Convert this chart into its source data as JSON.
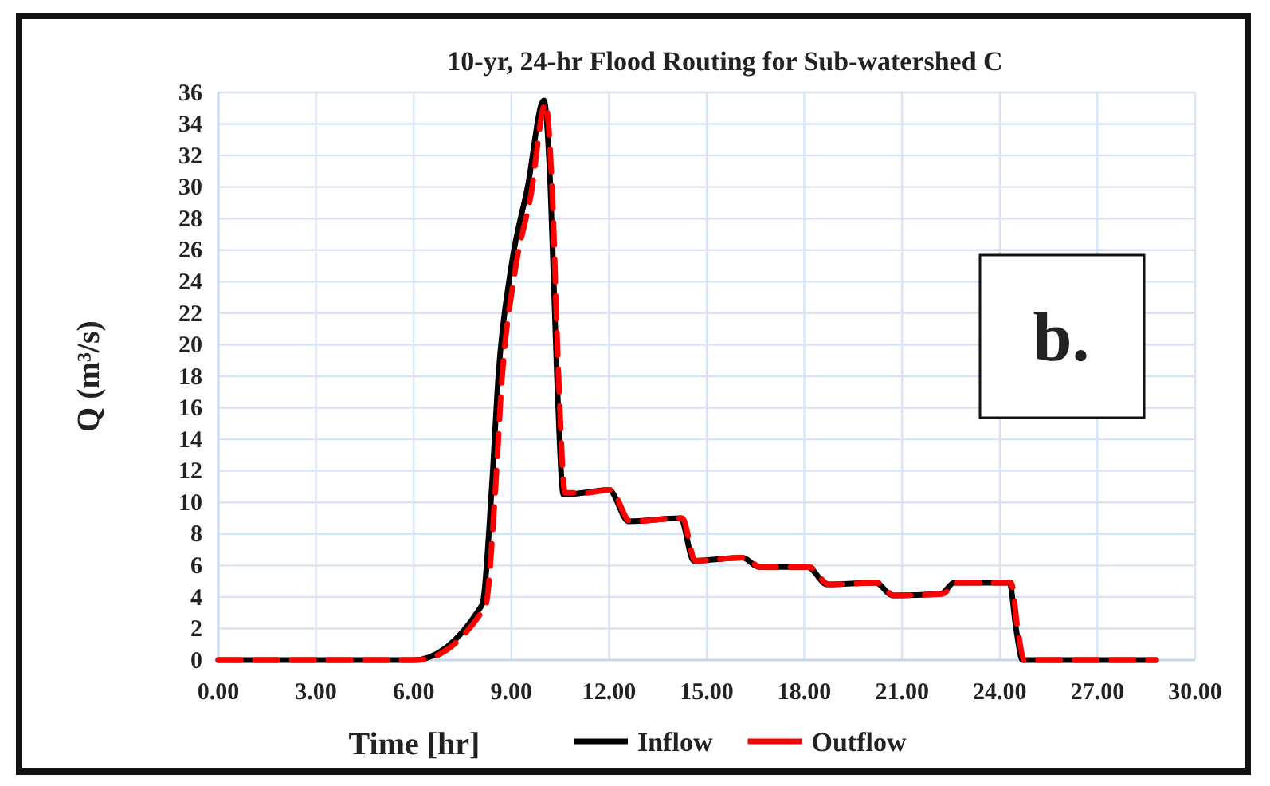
{
  "chart_data": {
    "type": "line",
    "title": "10-yr, 24-hr Flood Routing for Sub-watershed C",
    "xlabel": "Time [hr]",
    "ylabel": "Q (m³/s)",
    "annotations": [
      "b."
    ],
    "xlim": [
      0,
      30
    ],
    "xticks": [
      {
        "value": 0,
        "label": "0.00"
      },
      {
        "value": 3,
        "label": "3.00"
      },
      {
        "value": 6,
        "label": "6.00"
      },
      {
        "value": 9,
        "label": "9.00"
      },
      {
        "value": 12,
        "label": "12.00"
      },
      {
        "value": 15,
        "label": "15.00"
      },
      {
        "value": 18,
        "label": "18.00"
      },
      {
        "value": 21,
        "label": "21.00"
      },
      {
        "value": 24,
        "label": "24.00"
      },
      {
        "value": 27,
        "label": "27.00"
      },
      {
        "value": 30,
        "label": "30.00"
      }
    ],
    "ylim": [
      0,
      36
    ],
    "yticks": [
      0,
      2,
      4,
      6,
      8,
      10,
      12,
      14,
      16,
      18,
      20,
      22,
      24,
      26,
      28,
      30,
      32,
      34,
      36
    ],
    "grid": true,
    "legend": "bottom",
    "series": [
      {
        "name": "Inflow",
        "color": "#000000",
        "line_style": "solid",
        "x": [
          0,
          6,
          8.1,
          8.4,
          8.6,
          9,
          9.5,
          10,
          10.2,
          10.4,
          10.6,
          11.2,
          12,
          12.6,
          14.2,
          14.6,
          16.1,
          16.6,
          18.1,
          18.7,
          20.2,
          20.7,
          22.2,
          22.6,
          24.3,
          24.5,
          24.7,
          28.8
        ],
        "values": [
          0,
          0,
          3.5,
          11,
          18,
          25,
          30,
          35.5,
          30,
          18,
          10.5,
          10.6,
          10.8,
          8.8,
          9,
          6.3,
          6.5,
          5.9,
          5.9,
          4.8,
          4.9,
          4.1,
          4.2,
          4.9,
          4.9,
          2,
          0,
          0
        ]
      },
      {
        "name": "Outflow",
        "color": "#ff0000",
        "line_style": "dashed",
        "x": [
          0,
          6.1,
          8.2,
          8.5,
          8.7,
          9.1,
          9.6,
          10.05,
          10.25,
          10.45,
          10.65,
          11.25,
          12.05,
          12.65,
          14.25,
          14.65,
          16.15,
          16.65,
          18.15,
          18.75,
          20.25,
          20.75,
          22.25,
          22.65,
          24.35,
          24.55,
          24.75,
          28.8
        ],
        "values": [
          0,
          0,
          3.4,
          10.5,
          17.5,
          24.5,
          29.5,
          35.3,
          30,
          18,
          10.6,
          10.6,
          10.8,
          8.8,
          9,
          6.3,
          6.5,
          5.9,
          5.9,
          4.8,
          4.9,
          4.1,
          4.2,
          4.9,
          4.9,
          2,
          0,
          0
        ]
      }
    ]
  }
}
